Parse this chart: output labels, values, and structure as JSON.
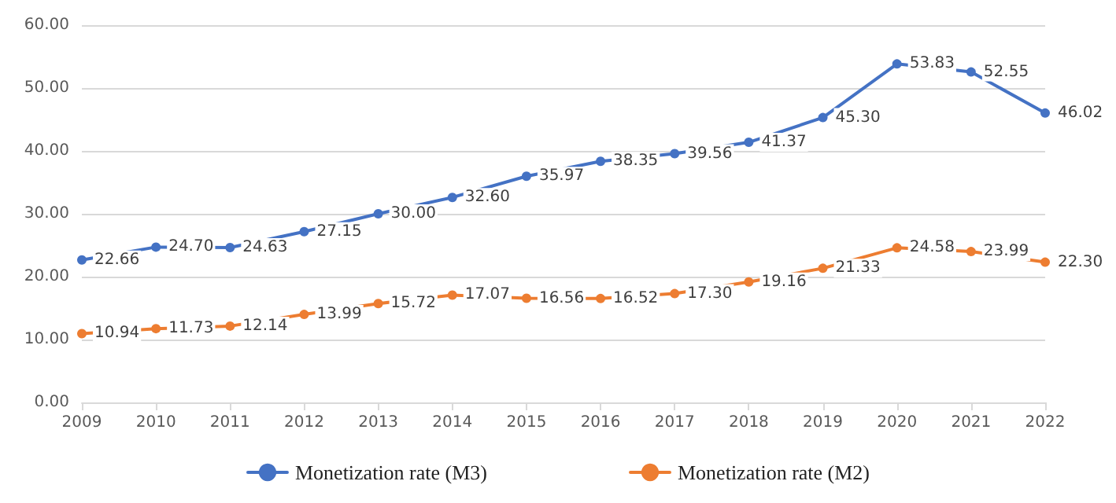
{
  "chart_data": {
    "type": "line",
    "categories": [
      "2009",
      "2010",
      "2011",
      "2012",
      "2013",
      "2014",
      "2015",
      "2016",
      "2017",
      "2018",
      "2019",
      "2020",
      "2021",
      "2022"
    ],
    "series": [
      {
        "name": "Monetization rate (M3)",
        "color": "#4472c4",
        "values": [
          22.66,
          24.7,
          24.63,
          27.15,
          30.0,
          32.6,
          35.97,
          38.35,
          39.56,
          41.37,
          45.3,
          53.83,
          52.55,
          46.02
        ],
        "value_labels": [
          "22.66",
          "24.70",
          "24.63",
          "27.15",
          "30.00",
          "32.60",
          "35.97",
          "38.35",
          "39.56",
          "41.37",
          "45.30",
          "53.83",
          "52.55",
          "46.02"
        ]
      },
      {
        "name": "Monetization rate (M2)",
        "color": "#ed7d31",
        "values": [
          10.94,
          11.73,
          12.14,
          13.99,
          15.72,
          17.07,
          16.56,
          16.52,
          17.3,
          19.16,
          21.33,
          24.58,
          23.99,
          22.3
        ],
        "value_labels": [
          "10.94",
          "11.73",
          "12.14",
          "13.99",
          "15.72",
          "17.07",
          "16.56",
          "16.52",
          "17.30",
          "19.16",
          "21.33",
          "24.58",
          "23.99",
          "22.30"
        ]
      }
    ],
    "ylim": [
      0,
      60
    ],
    "yticks": [
      {
        "value": 0,
        "label": "0.00"
      },
      {
        "value": 10,
        "label": "10.00"
      },
      {
        "value": 20,
        "label": "20.00"
      },
      {
        "value": 30,
        "label": "30.00"
      },
      {
        "value": 40,
        "label": "40.00"
      },
      {
        "value": 50,
        "label": "50.00"
      },
      {
        "value": 60,
        "label": "60.00"
      }
    ],
    "grid": "y",
    "legend": "bottom",
    "marker": "circle",
    "line_style": "solid"
  }
}
